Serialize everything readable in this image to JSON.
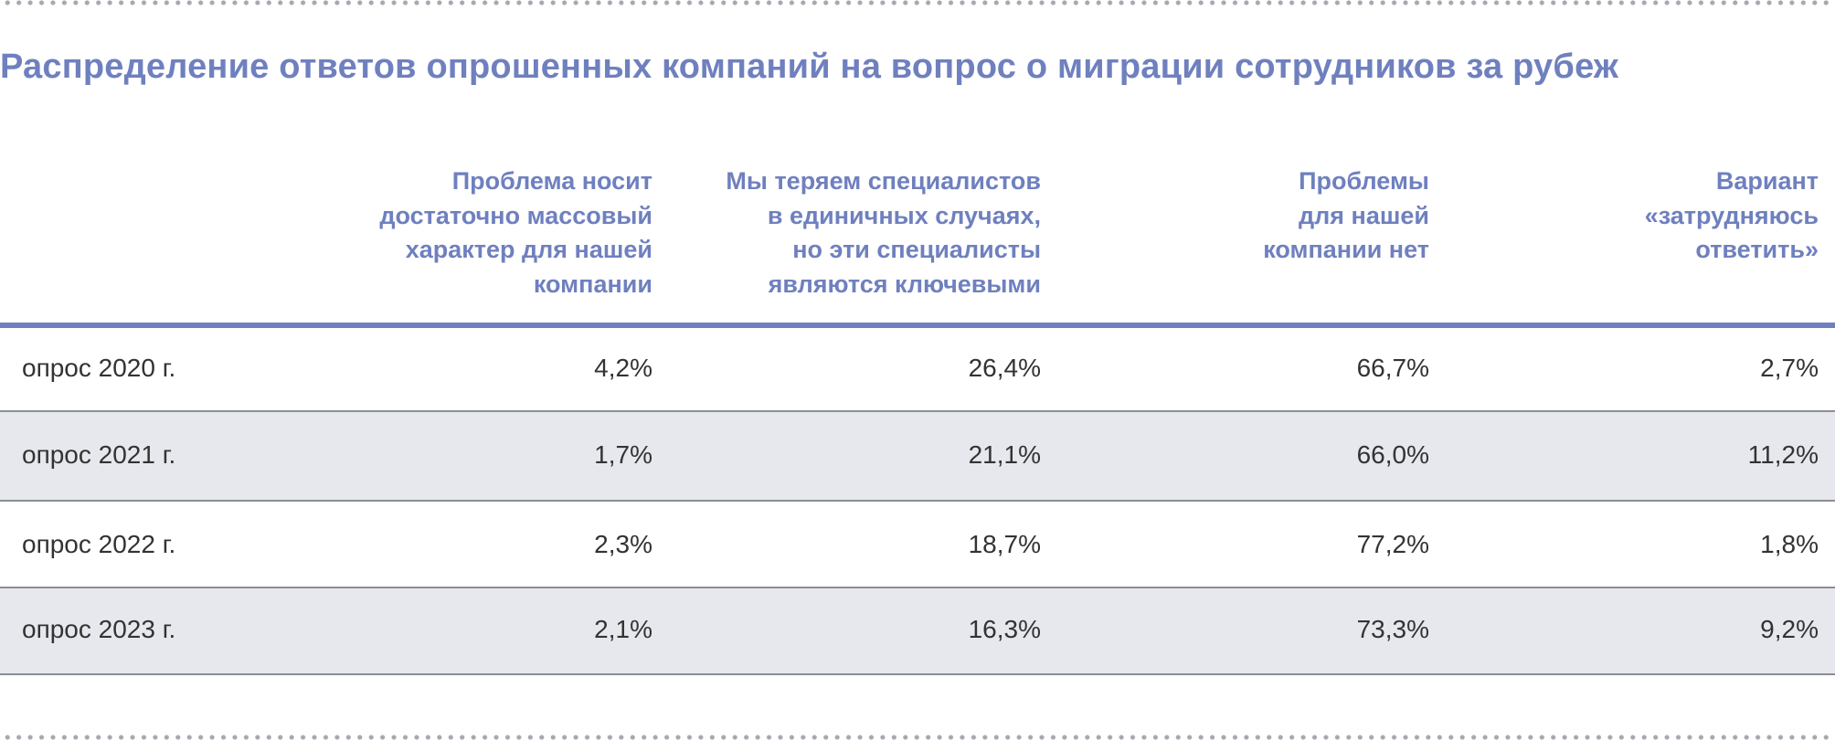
{
  "title": "Распределение ответов опрошенных компаний на вопрос о миграции сотрудников за рубеж",
  "columns": [
    {
      "lines": [
        "Проблема носит",
        "достаточно массовый",
        "характер для нашей",
        "компании"
      ]
    },
    {
      "lines": [
        "Мы теряем специалистов",
        "в единичных случаях,",
        "но эти специалисты",
        "являются ключевыми"
      ]
    },
    {
      "lines": [
        "Проблемы",
        "для нашей",
        "компании нет"
      ]
    },
    {
      "lines": [
        "Вариант",
        "«затрудняюсь",
        "ответить»"
      ]
    }
  ],
  "rows": [
    {
      "label": "опрос 2020 г.",
      "values": [
        "4,2%",
        "26,4%",
        "66,7%",
        "2,7%"
      ]
    },
    {
      "label": "опрос 2021 г.",
      "values": [
        "1,7%",
        "21,1%",
        "66,0%",
        "11,2%"
      ]
    },
    {
      "label": "опрос 2022 г.",
      "values": [
        "2,3%",
        "18,7%",
        "77,2%",
        "1,8%"
      ]
    },
    {
      "label": "опрос 2023 г.",
      "values": [
        "2,1%",
        "16,3%",
        "73,3%",
        "9,2%"
      ]
    }
  ],
  "colors": {
    "accent": "#6f80bf",
    "row_shade": "#e7e8ed",
    "text": "#333333",
    "rule": "#8b8e96",
    "dots": "#a7a9b1"
  }
}
